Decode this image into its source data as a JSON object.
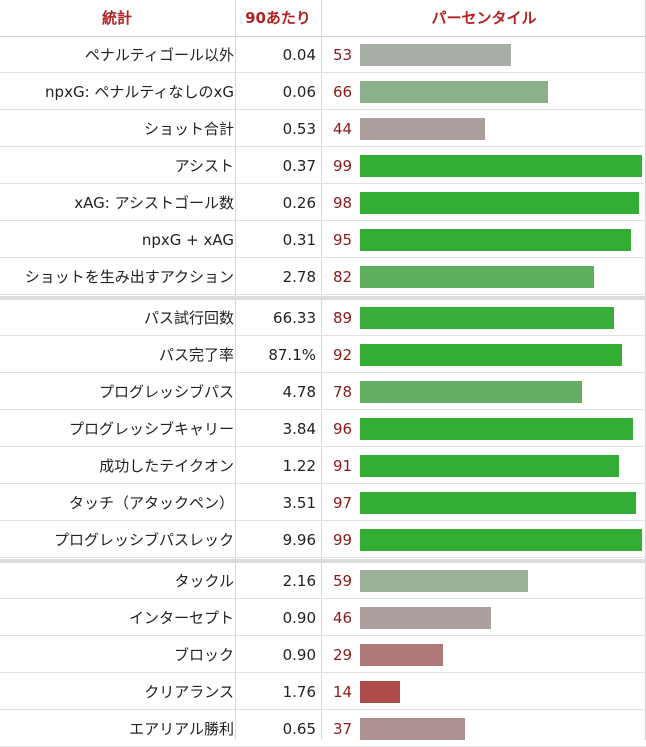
{
  "header": {
    "stat": "統計",
    "per90": "90あたり",
    "percentile": "パーセンタイル"
  },
  "groups": [
    [
      {
        "label": "ペナルティゴール以外",
        "value": "0.04",
        "percentile": "53",
        "color": "#a7aea5"
      },
      {
        "label": "npxG: ペナルティなしのxG",
        "value": "0.06",
        "percentile": "66",
        "color": "#8cb089"
      },
      {
        "label": "ショット合計",
        "value": "0.53",
        "percentile": "44",
        "color": "#ad9e9e"
      },
      {
        "label": "アシスト",
        "value": "0.37",
        "percentile": "99",
        "color": "#34ad34"
      },
      {
        "label": "xAG: アシストゴール数",
        "value": "0.26",
        "percentile": "98",
        "color": "#34ad34"
      },
      {
        "label": "npxG + xAG",
        "value": "0.31",
        "percentile": "95",
        "color": "#34ad34"
      },
      {
        "label": "ショットを生み出すアクション",
        "value": "2.78",
        "percentile": "82",
        "color": "#5eae5e"
      }
    ],
    [
      {
        "label": "パス試行回数",
        "value": "66.33",
        "percentile": "89",
        "color": "#3aae3a"
      },
      {
        "label": "パス完了率",
        "value": "87.1%",
        "percentile": "92",
        "color": "#34ad34"
      },
      {
        "label": "プログレッシブパス",
        "value": "4.78",
        "percentile": "78",
        "color": "#62ad62"
      },
      {
        "label": "プログレッシブキャリー",
        "value": "3.84",
        "percentile": "96",
        "color": "#34ad34"
      },
      {
        "label": "成功したテイクオン",
        "value": "1.22",
        "percentile": "91",
        "color": "#34ad34"
      },
      {
        "label": "タッチ（アタックペン）",
        "value": "3.51",
        "percentile": "97",
        "color": "#34ad34"
      },
      {
        "label": "プログレッシブパスレック",
        "value": "9.96",
        "percentile": "99",
        "color": "#34ad34"
      }
    ],
    [
      {
        "label": "タックル",
        "value": "2.16",
        "percentile": "59",
        "color": "#9cb09a"
      },
      {
        "label": "インターセプト",
        "value": "0.90",
        "percentile": "46",
        "color": "#ae9f9f"
      },
      {
        "label": "ブロック",
        "value": "0.90",
        "percentile": "29",
        "color": "#b07777"
      },
      {
        "label": "クリアランス",
        "value": "1.76",
        "percentile": "14",
        "color": "#ad4a4a"
      },
      {
        "label": "エアリアル勝利",
        "value": "0.65",
        "percentile": "37",
        "color": "#ad9090"
      }
    ]
  ]
}
